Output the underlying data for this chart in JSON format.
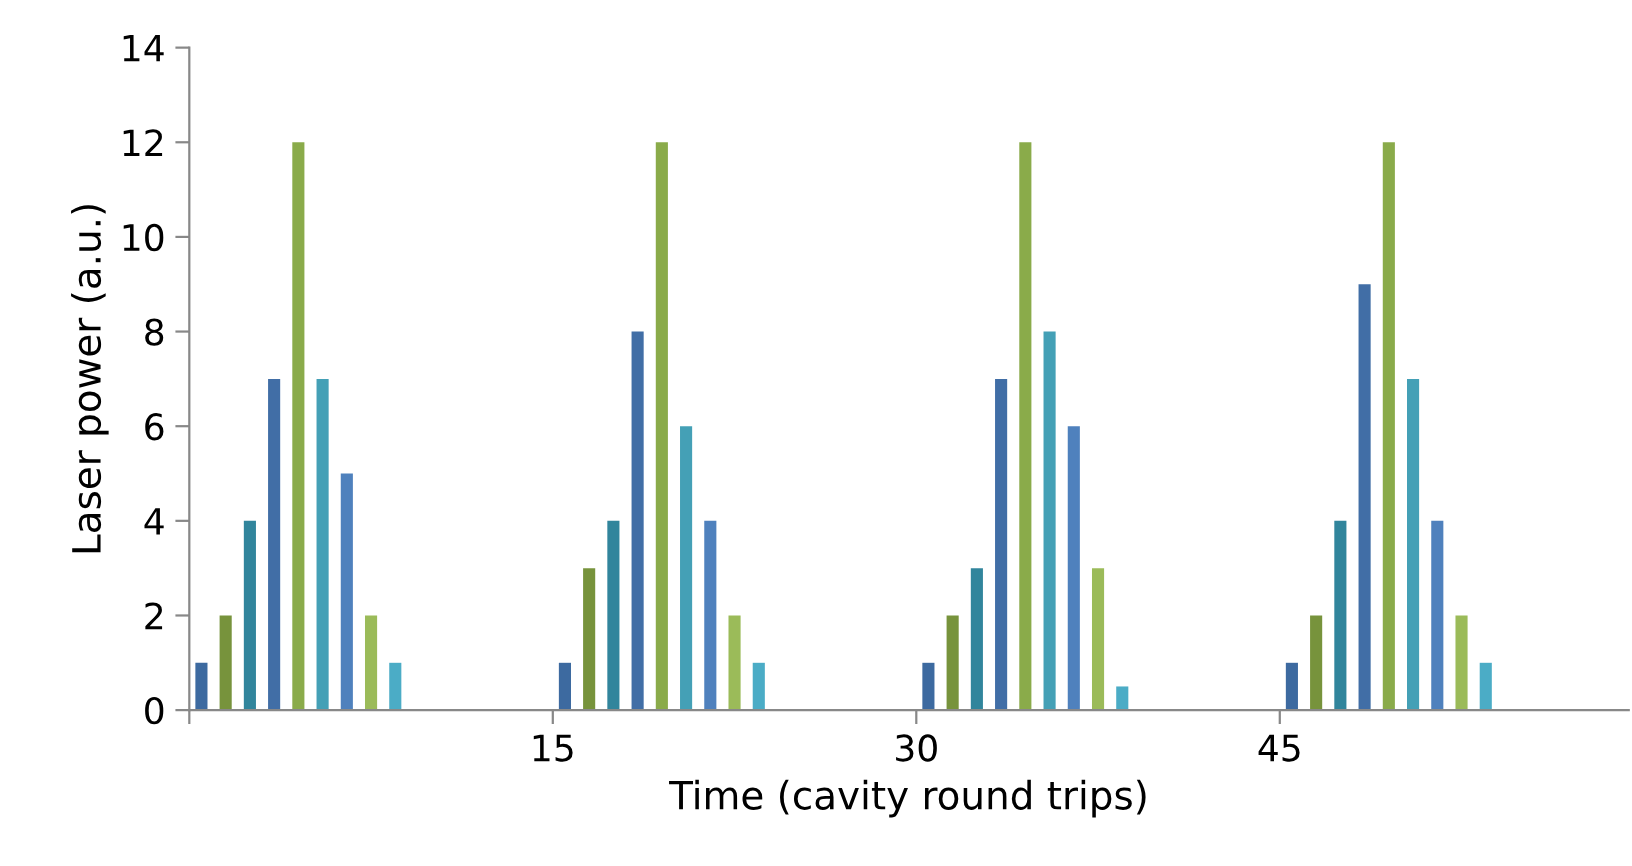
{
  "chart_data": {
    "type": "bar",
    "xlabel": "Time (cavity round trips)",
    "ylabel": "Laser power (a.u.)",
    "xlim": [
      0,
      59.4
    ],
    "xticks": [
      {
        "value": 0,
        "label": null
      },
      15,
      30,
      45
    ],
    "ylim": [
      0,
      14
    ],
    "yticks": [
      0,
      2,
      4,
      6,
      8,
      10,
      12,
      14
    ],
    "grid": false,
    "series": [
      {
        "color": "#3d6aa0",
        "x": [
          0.5,
          15.5,
          30.5,
          45.5
        ],
        "values": [
          1,
          1,
          1,
          1
        ]
      },
      {
        "color": "#77933c",
        "x": [
          1.5,
          16.5,
          31.5,
          46.5
        ],
        "values": [
          2,
          3,
          2,
          2
        ]
      },
      {
        "color": "#31859c",
        "x": [
          2.5,
          17.5,
          32.5,
          47.5
        ],
        "values": [
          4,
          4,
          3,
          4
        ]
      },
      {
        "color": "#416ea6",
        "x": [
          3.5,
          18.5,
          33.5,
          48.5
        ],
        "values": [
          7,
          8,
          7,
          9
        ]
      },
      {
        "color": "#8aab4a",
        "x": [
          4.5,
          19.5,
          34.5,
          49.5
        ],
        "values": [
          12,
          12,
          12,
          12
        ]
      },
      {
        "color": "#44a0b6",
        "x": [
          5.5,
          20.5,
          35.5,
          50.5
        ],
        "values": [
          7,
          6,
          8,
          7
        ]
      },
      {
        "color": "#4f81bd",
        "x": [
          6.5,
          21.5,
          36.5,
          51.5
        ],
        "values": [
          5,
          4,
          6,
          4
        ]
      },
      {
        "color": "#9bbb59",
        "x": [
          7.5,
          22.5,
          37.5,
          52.5
        ],
        "values": [
          2,
          2,
          3,
          2
        ]
      },
      {
        "color": "#4bacc6",
        "x": [
          8.5,
          23.5,
          38.5,
          53.5
        ],
        "values": [
          1,
          1,
          0.5,
          1
        ]
      }
    ]
  }
}
